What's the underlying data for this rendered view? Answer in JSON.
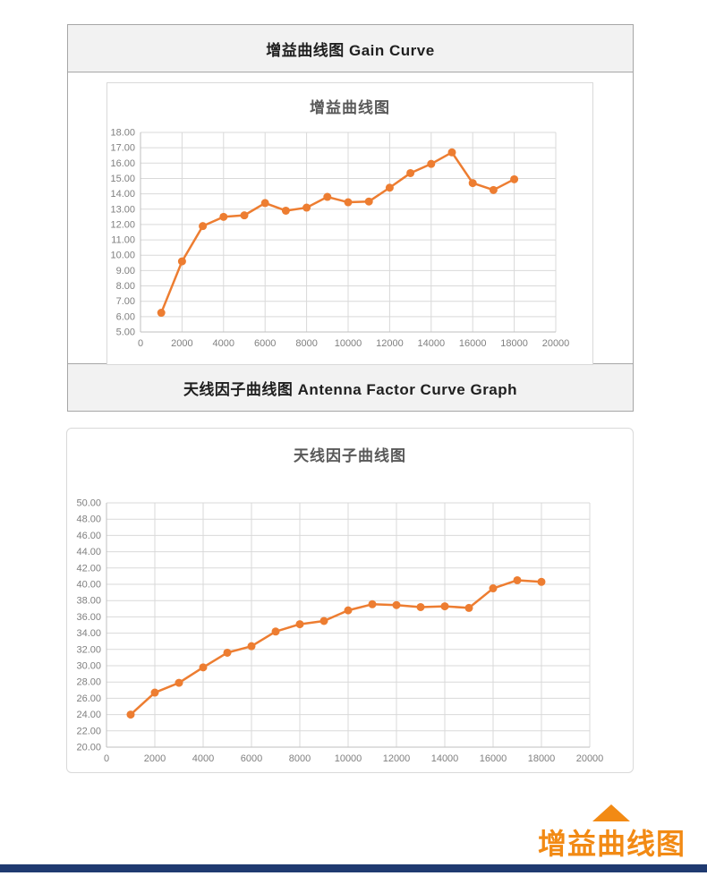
{
  "sections": {
    "gain_header": "增益曲线图 Gain Curve",
    "antenna_header": "天线因子曲线图  Antenna Factor Curve Graph"
  },
  "footer": {
    "label": "增益曲线图"
  },
  "colors": {
    "line_orange": "#ED7D31",
    "footer_orange": "#f28a14",
    "navy_bar": "#1f3a70",
    "header_bg": "#f2f2f2",
    "grid_gray": "#d9d9d9",
    "tick_gray": "#808080"
  },
  "chart_data": [
    {
      "type": "line",
      "title": "增益曲线图",
      "x": [
        1000,
        2000,
        3000,
        4000,
        5000,
        6000,
        7000,
        8000,
        9000,
        10000,
        11000,
        12000,
        13000,
        14000,
        15000,
        16000,
        17000,
        18000
      ],
      "values": [
        6.25,
        9.6,
        11.9,
        12.5,
        12.6,
        13.4,
        12.9,
        13.1,
        13.8,
        13.45,
        13.5,
        14.4,
        15.35,
        15.95,
        16.7,
        14.7,
        14.25,
        14.95
      ],
      "xlabel": "",
      "ylabel": "",
      "xlim": [
        0,
        20000
      ],
      "xstep": 2000,
      "ylim": [
        5,
        18
      ],
      "ystep": 1,
      "y_tick_decimals": 2,
      "grid": true,
      "legend": "none",
      "line_color": "#ED7D31",
      "marker": "circle"
    },
    {
      "type": "line",
      "title": "天线因子曲线图",
      "x": [
        1000,
        2000,
        3000,
        4000,
        5000,
        6000,
        7000,
        8000,
        9000,
        10000,
        11000,
        12000,
        13000,
        14000,
        15000,
        16000,
        17000,
        18000
      ],
      "values": [
        24.0,
        26.7,
        27.9,
        29.8,
        31.6,
        32.4,
        34.2,
        35.1,
        35.5,
        36.8,
        37.55,
        37.45,
        37.2,
        37.3,
        37.1,
        39.5,
        40.5,
        40.3
      ],
      "xlabel": "",
      "ylabel": "",
      "xlim": [
        0,
        20000
      ],
      "xstep": 2000,
      "ylim": [
        20,
        50
      ],
      "ystep": 2,
      "y_tick_decimals": 2,
      "grid": true,
      "legend": "none",
      "line_color": "#ED7D31",
      "marker": "circle"
    }
  ]
}
